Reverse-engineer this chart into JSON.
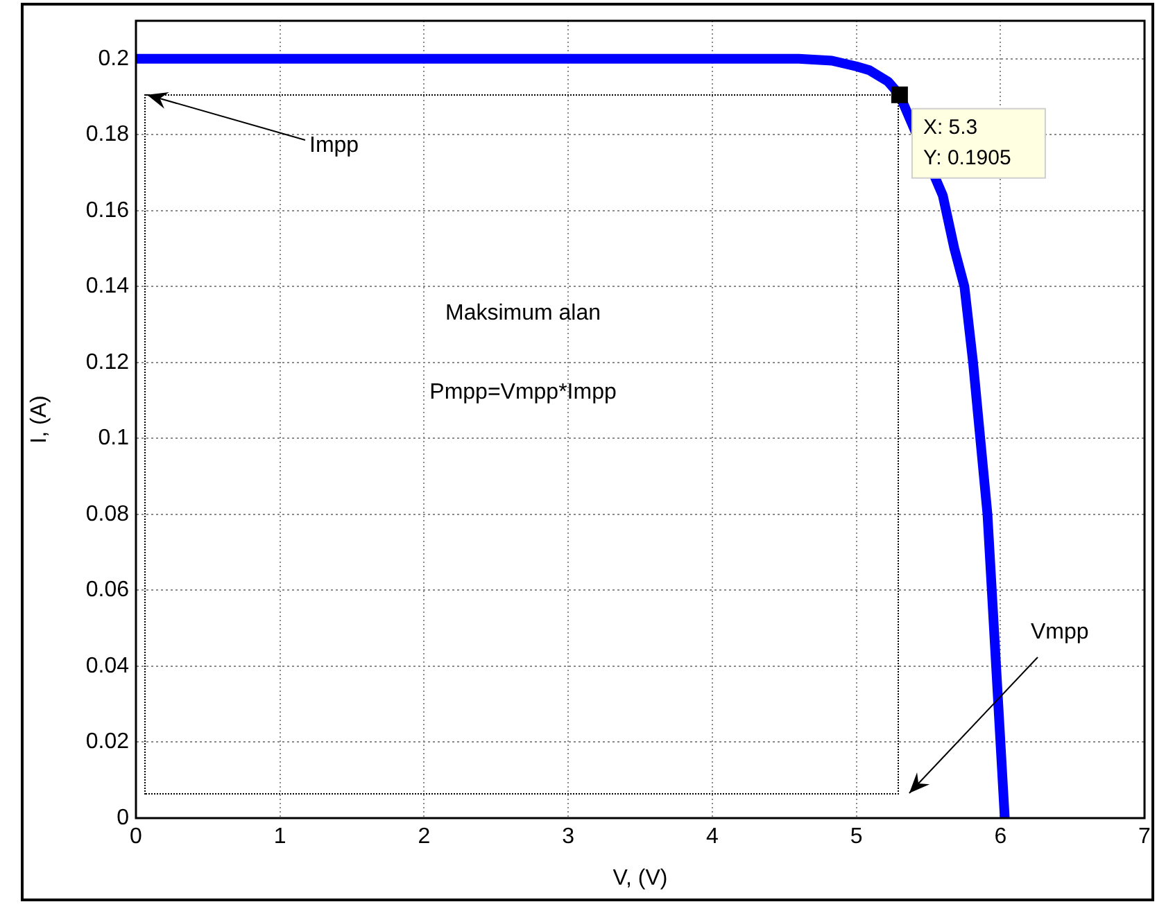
{
  "chart_data": {
    "type": "line",
    "xlabel": "V, (V)",
    "ylabel": "I, (A)",
    "xlim": [
      0,
      7
    ],
    "xticks": [
      0,
      1,
      2,
      3,
      4,
      5,
      6,
      7
    ],
    "ylim": [
      0,
      0.21
    ],
    "yticks": [
      0,
      0.02,
      0.04,
      0.06,
      0.08,
      0.1,
      0.12,
      0.14,
      0.16,
      0.18,
      0.2
    ],
    "grid": true,
    "legend": false,
    "marker": "none",
    "series": [
      {
        "color": "#0000ff",
        "line_style": "solid",
        "x": [
          0,
          4.6,
          4.83,
          5.0,
          5.09,
          5.22,
          5.3,
          5.45,
          5.6,
          5.68,
          5.75,
          5.81,
          5.86,
          5.91,
          5.97,
          6.03
        ],
        "values": [
          0.2,
          0.2,
          0.1995,
          0.198,
          0.197,
          0.194,
          0.1905,
          null,
          0.164,
          0.15,
          0.14,
          0.12,
          0.1,
          0.08,
          0.04,
          0
        ]
      }
    ],
    "annotations": [
      "Impp",
      "Vmpp",
      "Maksimum alan",
      "Pmpp=Vmpp*Impp",
      {
        "text": "X: 5.3\nY: 0.1905",
        "x": 5.3,
        "y": 0.1905
      }
    ]
  }
}
